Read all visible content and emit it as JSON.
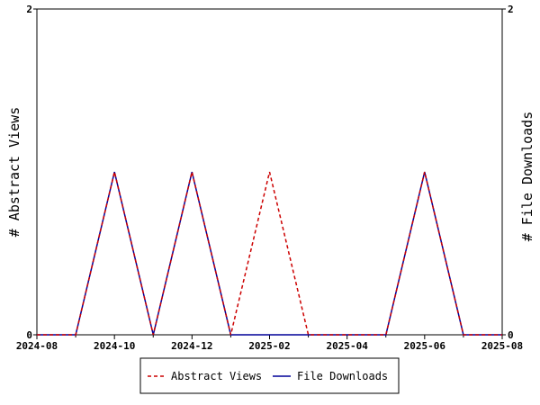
{
  "chart_data": {
    "type": "line",
    "title": "",
    "xlabel": "",
    "ylabel": "# Abstract Views",
    "y2label": "# File Downloads",
    "x": [
      "2024-08",
      "2024-09",
      "2024-10",
      "2024-11",
      "2024-12",
      "2025-01",
      "2025-02",
      "2025-03",
      "2025-04",
      "2025-05",
      "2025-06",
      "2025-07",
      "2025-08"
    ],
    "x_tick_labels": [
      "2024-08",
      "2024-10",
      "2024-12",
      "2025-02",
      "2025-04",
      "2025-06",
      "2025-08"
    ],
    "ylim": [
      0,
      2
    ],
    "y2lim": [
      0,
      2
    ],
    "y_tick_labels": [
      "0",
      "2"
    ],
    "y2_tick_labels": [
      "0",
      "2"
    ],
    "grid": false,
    "legend_position": "bottom-center",
    "series": [
      {
        "name": "Abstract Views",
        "color": "#cc0000",
        "dash": "dashed",
        "axis": "left",
        "values": [
          0,
          0,
          1,
          0,
          1,
          0,
          1,
          0,
          0,
          0,
          1,
          0,
          0
        ]
      },
      {
        "name": "File Downloads",
        "color": "#000099",
        "dash": "solid",
        "axis": "right",
        "values": [
          0,
          0,
          1,
          0,
          1,
          0,
          0,
          0,
          0,
          0,
          1,
          0,
          0
        ]
      }
    ]
  }
}
